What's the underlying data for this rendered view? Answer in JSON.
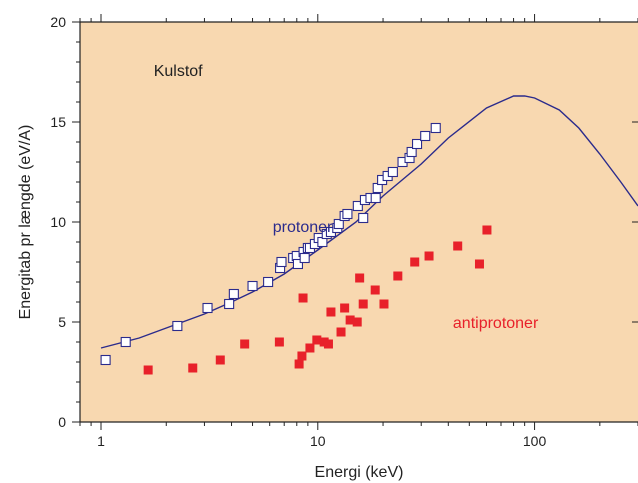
{
  "chart_data": {
    "type": "scatter",
    "xlabel": "Energi (keV)",
    "ylabel": "Energitab pr længde (eV/A)",
    "x_scale": "log",
    "xlim": [
      0.8,
      300
    ],
    "ylim": [
      0,
      20
    ],
    "x_ticks": [
      1,
      10,
      100
    ],
    "x_tick_labels": [
      "1",
      "10",
      "100"
    ],
    "y_ticks": [
      0,
      5,
      10,
      15,
      20
    ],
    "y_tick_labels": [
      "0",
      "5",
      "10",
      "15",
      "20"
    ],
    "grid": false,
    "colors": {
      "plot_background": "#f8d8b0",
      "protoner": "#2b2b8c",
      "antiprotoner": "#e8212a",
      "axis": "#222222"
    },
    "annotations": [
      {
        "text": "Kulstof",
        "x": 1.75,
        "y": 17.3,
        "color": "#222222"
      },
      {
        "text": "protoner",
        "x": 6.2,
        "y": 9.5,
        "color": "#2b2b8c"
      },
      {
        "text": "antiprotoner",
        "x": 42,
        "y": 4.7,
        "color": "#e8212a"
      }
    ],
    "series": [
      {
        "name": "protoner",
        "kind": "line",
        "x": [
          1.0,
          1.5,
          2.0,
          3.0,
          4.0,
          5.0,
          7.0,
          10,
          15,
          20,
          30,
          40,
          60,
          80,
          90,
          100,
          130,
          160,
          200,
          250,
          300
        ],
        "y": [
          3.7,
          4.2,
          4.7,
          5.4,
          6.0,
          6.5,
          7.4,
          8.6,
          10.0,
          11.3,
          12.9,
          14.2,
          15.7,
          16.3,
          16.3,
          16.2,
          15.6,
          14.7,
          13.4,
          12.0,
          10.8
        ]
      },
      {
        "name": "protoner",
        "kind": "open-square",
        "x": [
          1.05,
          1.3,
          2.25,
          3.1,
          3.9,
          4.1,
          5.0,
          5.9,
          6.7,
          6.8,
          7.7,
          8.0,
          8.1,
          8.6,
          8.7,
          9.0,
          9.2,
          9.7,
          10.1,
          10.5,
          11.0,
          11.5,
          12.3,
          12.5,
          13.3,
          13.7,
          15.3,
          16.2,
          16.5,
          17.5,
          18.5,
          18.9,
          19.8,
          21.0,
          22.2,
          24.6,
          26.5,
          27.1,
          28.7,
          31.3,
          35.0
        ],
        "y": [
          3.1,
          4.0,
          4.8,
          5.7,
          5.9,
          6.4,
          6.8,
          7.0,
          7.7,
          8.0,
          8.2,
          8.3,
          7.9,
          8.5,
          8.2,
          8.7,
          8.7,
          8.9,
          9.2,
          9.0,
          9.4,
          9.5,
          9.7,
          9.9,
          10.3,
          10.4,
          10.8,
          10.2,
          11.1,
          11.2,
          11.2,
          11.7,
          12.1,
          12.3,
          12.5,
          13.0,
          13.2,
          13.5,
          13.9,
          14.3,
          14.7
        ]
      },
      {
        "name": "antiprotoner",
        "kind": "filled-square",
        "x": [
          1.65,
          2.65,
          3.55,
          4.6,
          6.65,
          8.2,
          8.45,
          8.55,
          9.2,
          9.9,
          10.7,
          11.2,
          11.5,
          12.8,
          13.3,
          14.1,
          15.2,
          15.6,
          16.2,
          18.4,
          20.2,
          23.4,
          28.0,
          32.6,
          44.2,
          55.7,
          60.3
        ],
        "y": [
          2.6,
          2.7,
          3.1,
          3.9,
          4.0,
          2.9,
          3.3,
          6.2,
          3.7,
          4.1,
          4.0,
          3.9,
          5.5,
          4.5,
          5.7,
          5.1,
          5.0,
          7.2,
          5.9,
          6.6,
          5.9,
          7.3,
          8.0,
          8.3,
          8.8,
          7.9,
          9.6
        ]
      }
    ]
  }
}
